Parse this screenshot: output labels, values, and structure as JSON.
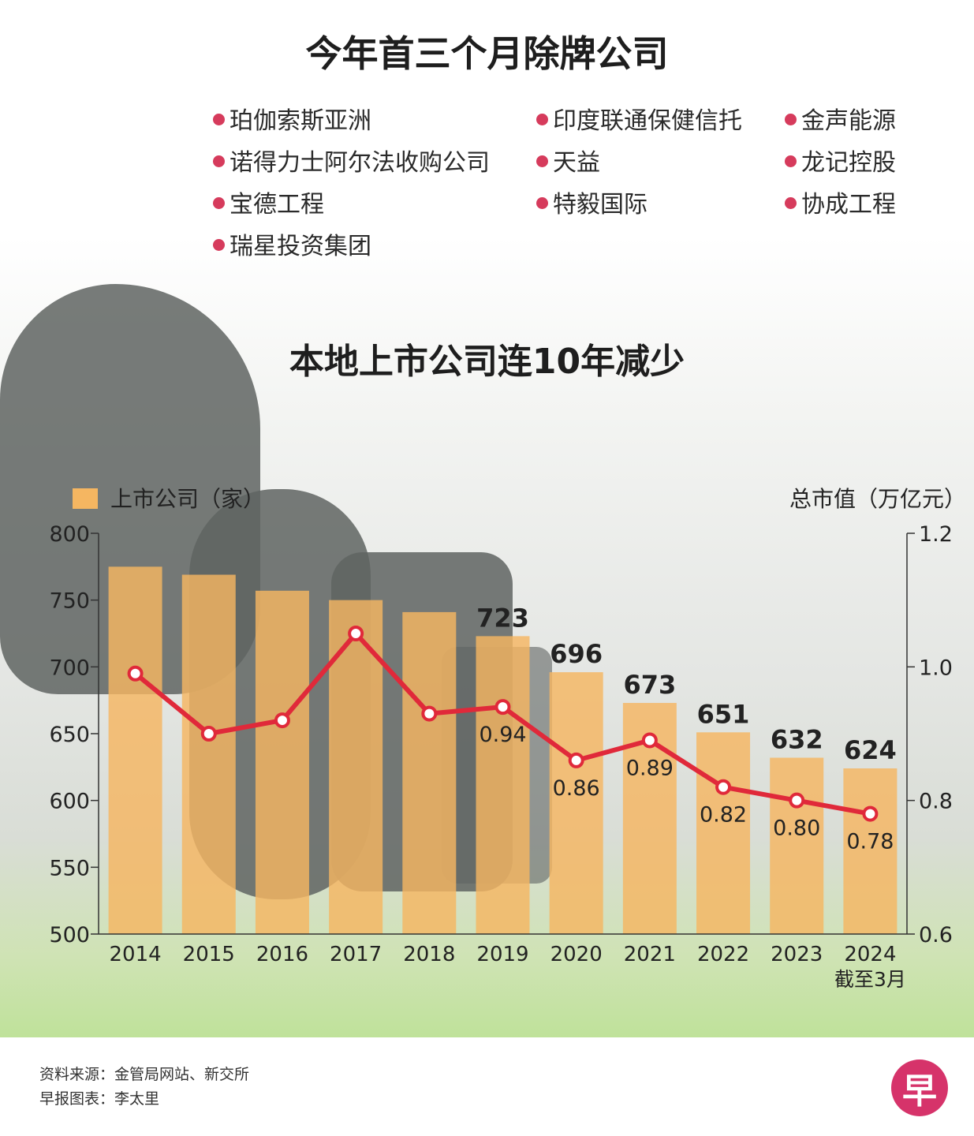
{
  "title": "今年首三个月除牌公司",
  "delisted_companies": [
    "珀伽索斯亚洲",
    "印度联通保健信托",
    "金声能源",
    "诺得力士阿尔法收购公司",
    "天益",
    "龙记控股",
    "宝德工程",
    "特毅国际",
    "协成工程",
    "瑞星投资集团"
  ],
  "colors": {
    "bar": "#f5b661",
    "line": "#e0293a",
    "bullet": "#d63b5c",
    "logo": "#d6336a"
  },
  "chart_data": {
    "type": "bar",
    "title": "本地上市公司连10年减少",
    "categories": [
      "2014",
      "2015",
      "2016",
      "2017",
      "2018",
      "2019",
      "2020",
      "2021",
      "2022",
      "2023",
      "2024"
    ],
    "category_note": "截至3月",
    "legend": [
      "上市公司（家）"
    ],
    "y2_label": "总市值（万亿元）",
    "ylim": [
      500,
      800
    ],
    "yticks": [
      800,
      750,
      700,
      650,
      600,
      550,
      500
    ],
    "y2lim": [
      0.6,
      1.2
    ],
    "y2ticks": [
      "1.2",
      "1.0",
      "0.8",
      "0.6"
    ],
    "series": [
      {
        "name": "上市公司（家）",
        "type": "bar",
        "values": [
          775,
          769,
          757,
          750,
          741,
          723,
          696,
          673,
          651,
          632,
          624
        ],
        "labels": [
          "",
          "",
          "",
          "",
          "",
          "723",
          "696",
          "673",
          "651",
          "632",
          "624"
        ]
      },
      {
        "name": "总市值（万亿元）",
        "type": "line",
        "values": [
          0.99,
          0.9,
          0.92,
          1.05,
          0.93,
          0.94,
          0.86,
          0.89,
          0.82,
          0.8,
          0.78
        ],
        "labels": [
          "",
          "",
          "",
          "",
          "",
          "0.94",
          "0.86",
          "0.89",
          "0.82",
          "0.80",
          "0.78"
        ]
      }
    ]
  },
  "footer": {
    "source": "资料来源：金管局网站、新交所",
    "credit": "早报图表：李太里",
    "logo": "早"
  }
}
